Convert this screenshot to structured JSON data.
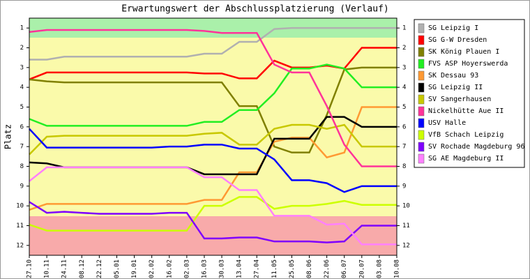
{
  "chart_data": {
    "type": "line",
    "title": "Erwartungswert der Abschlussplatzierung (Verlauf)",
    "y_label": "Platz",
    "categories": [
      "27.10",
      "10.11",
      "24.11",
      "08.12",
      "22.12",
      "05.01",
      "19.01",
      "02.02",
      "16.02",
      "02.03",
      "16.03",
      "30.03",
      "13.04",
      "27.04",
      "11.05",
      "25.05",
      "08.06",
      "22.06",
      "06.07",
      "20.07",
      "03.08",
      "10.08"
    ],
    "ylim": [
      12.5,
      0.5
    ],
    "yticks": [
      1,
      2,
      3,
      4,
      5,
      6,
      7,
      8,
      9,
      10,
      11,
      12
    ],
    "legend": "right",
    "series": [
      {
        "name": "SG Leipzig I",
        "color": "#b0b0b0",
        "values": [
          2.6,
          2.6,
          2.45,
          2.45,
          2.45,
          2.45,
          2.45,
          2.45,
          2.45,
          2.45,
          2.3,
          2.3,
          1.7,
          1.7,
          1.05,
          1.0,
          1.0,
          1.0,
          1.0,
          1.0,
          1.0,
          1.0
        ]
      },
      {
        "name": "SG G-W Dresden",
        "color": "#ff0000",
        "values": [
          3.6,
          3.25,
          3.25,
          3.25,
          3.25,
          3.25,
          3.25,
          3.25,
          3.25,
          3.25,
          3.3,
          3.3,
          3.55,
          3.55,
          2.65,
          3.0,
          3.0,
          2.9,
          3.05,
          2.0,
          2.0,
          2.0
        ]
      },
      {
        "name": "SK König Plauen I",
        "color": "#808000",
        "values": [
          3.6,
          3.7,
          3.75,
          3.75,
          3.75,
          3.75,
          3.75,
          3.75,
          3.75,
          3.75,
          3.75,
          3.75,
          4.95,
          4.95,
          7.0,
          7.3,
          7.3,
          5.4,
          3.1,
          3.0,
          3.0,
          3.0
        ]
      },
      {
        "name": "FVS ASP Hoyerswerda",
        "color": "#22ee22",
        "values": [
          5.6,
          5.95,
          5.95,
          5.95,
          5.95,
          5.95,
          5.95,
          5.95,
          5.95,
          5.95,
          5.75,
          5.75,
          5.15,
          5.15,
          4.3,
          3.05,
          3.05,
          2.85,
          3.05,
          4.0,
          4.0,
          4.0
        ]
      },
      {
        "name": "SK Dessau 93",
        "color": "#ff9933",
        "values": [
          10.2,
          9.9,
          9.9,
          9.9,
          9.9,
          9.9,
          9.9,
          9.9,
          9.9,
          9.9,
          9.7,
          9.7,
          8.3,
          8.3,
          6.75,
          6.55,
          6.55,
          7.55,
          7.3,
          5.0,
          5.0,
          5.0
        ]
      },
      {
        "name": "SG Leipzig II",
        "color": "#000000",
        "values": [
          7.8,
          7.85,
          8.05,
          8.05,
          8.05,
          8.05,
          8.05,
          8.05,
          8.05,
          8.05,
          8.4,
          8.4,
          8.4,
          8.4,
          6.6,
          6.6,
          6.6,
          5.5,
          5.5,
          6.0,
          6.0,
          6.0
        ]
      },
      {
        "name": "SV Sangerhausen",
        "color": "#c8c800",
        "values": [
          7.4,
          6.5,
          6.45,
          6.45,
          6.45,
          6.45,
          6.45,
          6.45,
          6.45,
          6.45,
          6.35,
          6.3,
          6.9,
          6.9,
          6.1,
          5.9,
          5.9,
          6.1,
          5.9,
          7.0,
          7.0,
          7.0
        ]
      },
      {
        "name": "Nickelhütte Aue II",
        "color": "#ff3399",
        "values": [
          1.2,
          1.1,
          1.1,
          1.1,
          1.1,
          1.1,
          1.1,
          1.1,
          1.1,
          1.1,
          1.15,
          1.25,
          1.25,
          1.25,
          2.85,
          3.25,
          3.25,
          4.95,
          6.9,
          8.0,
          8.0,
          8.0
        ]
      },
      {
        "name": "USV Halle",
        "color": "#0000ff",
        "values": [
          6.1,
          7.05,
          7.05,
          7.05,
          7.05,
          7.05,
          7.05,
          7.05,
          7.0,
          7.0,
          6.9,
          6.9,
          7.1,
          7.1,
          7.65,
          8.7,
          8.7,
          8.85,
          9.3,
          9.0,
          9.0,
          9.0
        ]
      },
      {
        "name": "VfB Schach Leipzig",
        "color": "#ccff00",
        "values": [
          10.95,
          11.25,
          11.25,
          11.25,
          11.25,
          11.25,
          11.25,
          11.25,
          11.25,
          11.25,
          10.0,
          10.0,
          9.55,
          9.55,
          10.15,
          10.0,
          10.0,
          9.9,
          9.75,
          9.95,
          9.95,
          9.95
        ]
      },
      {
        "name": "SV Rochade Magdeburg 96",
        "color": "#7f00ff",
        "values": [
          9.8,
          10.35,
          10.3,
          10.35,
          10.4,
          10.4,
          10.4,
          10.4,
          10.35,
          10.35,
          11.65,
          11.65,
          11.6,
          11.6,
          11.8,
          11.8,
          11.8,
          11.85,
          11.8,
          11.0,
          11.0,
          11.0
        ]
      },
      {
        "name": "SG AE Magdeburg II",
        "color": "#ff80ff",
        "values": [
          8.75,
          8.05,
          8.05,
          8.05,
          8.05,
          8.05,
          8.05,
          8.05,
          8.05,
          8.05,
          8.55,
          8.55,
          9.2,
          9.2,
          10.5,
          10.5,
          10.5,
          10.95,
          10.9,
          11.95,
          11.95,
          11.95
        ]
      }
    ]
  }
}
